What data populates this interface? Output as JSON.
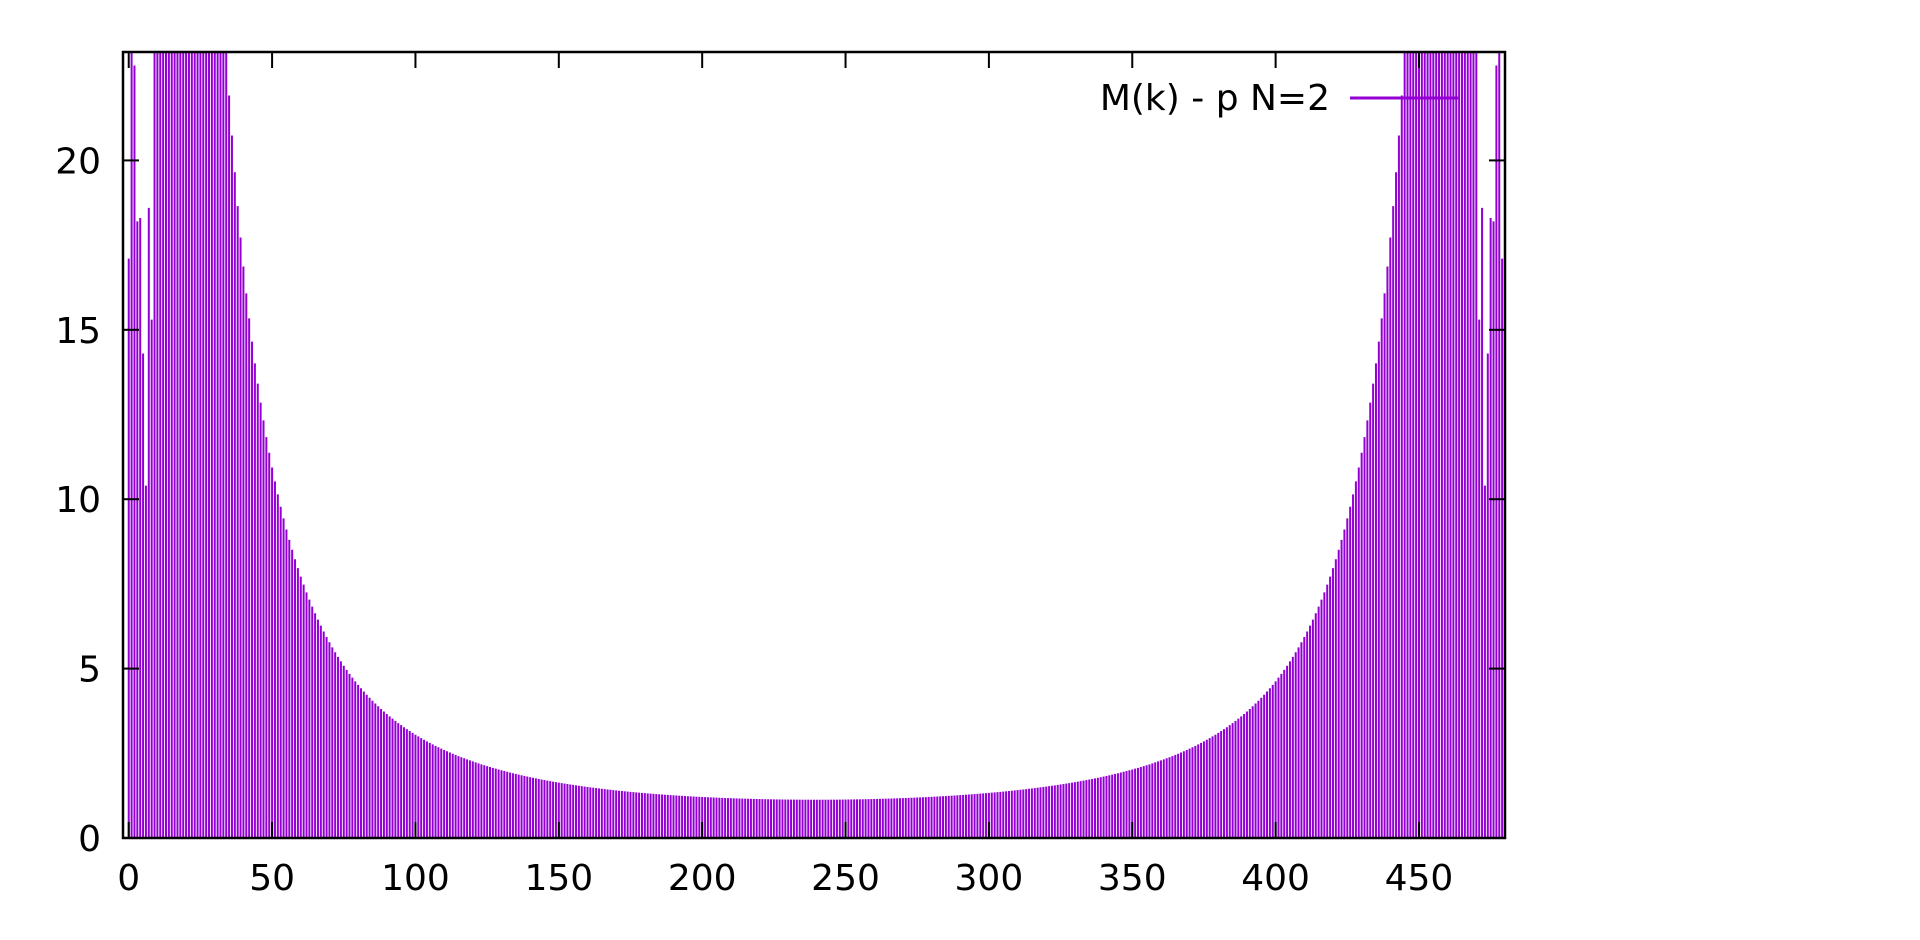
{
  "chart_data": {
    "type": "bar",
    "title": "",
    "xlabel": "",
    "ylabel": "",
    "xlim": [
      -2,
      480
    ],
    "ylim": [
      0,
      23.2
    ],
    "grid": false,
    "legend_position": "top-right",
    "x_ticks": [
      0,
      50,
      100,
      150,
      200,
      250,
      300,
      350,
      400,
      450
    ],
    "y_ticks": [
      0,
      5,
      10,
      15,
      20
    ],
    "series": [
      {
        "name": "M(k) - p N=2",
        "color": "#9400d3",
        "x_range": [
          0,
          479
        ],
        "minimum": {
          "x": 240,
          "y": 1.13
        },
        "outliers": [
          {
            "x": 0,
            "y": 17.1
          },
          {
            "x": 1,
            "y": 23.2
          },
          {
            "x": 2,
            "y": 22.8
          },
          {
            "x": 3,
            "y": 18.2
          },
          {
            "x": 4,
            "y": 18.3
          },
          {
            "x": 5,
            "y": 14.3
          },
          {
            "x": 6,
            "y": 10.4
          },
          {
            "x": 7,
            "y": 18.6
          },
          {
            "x": 8,
            "y": 15.3
          },
          {
            "x": 471,
            "y": 15.3
          },
          {
            "x": 472,
            "y": 18.6
          },
          {
            "x": 473,
            "y": 10.4
          },
          {
            "x": 474,
            "y": 14.3
          },
          {
            "x": 475,
            "y": 18.3
          },
          {
            "x": 476,
            "y": 18.2
          },
          {
            "x": 477,
            "y": 22.8
          },
          {
            "x": 478,
            "y": 23.2
          },
          {
            "x": 479,
            "y": 17.1
          }
        ]
      }
    ]
  }
}
